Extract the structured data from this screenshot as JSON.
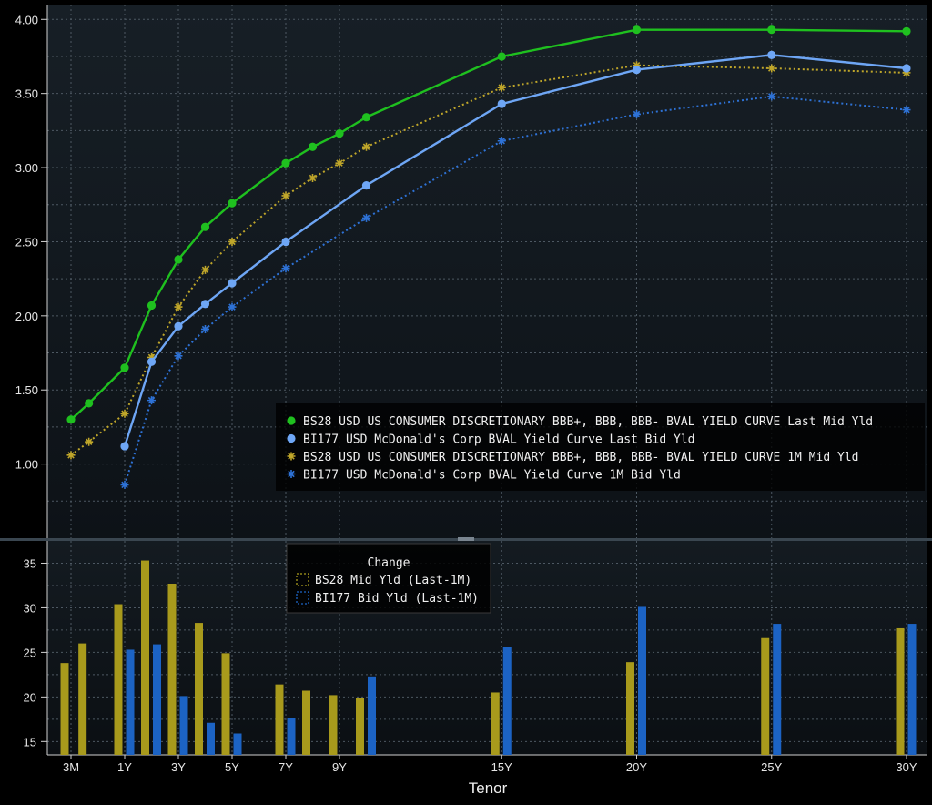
{
  "chart_data": [
    {
      "type": "line",
      "xlabel": "Tenor",
      "ylabel": "",
      "ylim": [
        0.5,
        4.1
      ],
      "y_ticks": [
        "1.00",
        "1.50",
        "2.00",
        "2.50",
        "3.00",
        "3.50",
        "4.00"
      ],
      "x": [
        "3M",
        "6M",
        "1Y",
        "2Y",
        "3Y",
        "4Y",
        "5Y",
        "7Y",
        "8Y",
        "9Y",
        "10Y",
        "15Y",
        "20Y",
        "25Y",
        "30Y"
      ],
      "x_tick_labels": [
        "3M",
        "1Y",
        "3Y",
        "5Y",
        "7Y",
        "9Y",
        "15Y",
        "20Y",
        "25Y",
        "30Y"
      ],
      "grid": true,
      "legend_position": "bottom-right",
      "series": [
        {
          "name": "BS28 USD US CONSUMER DISCRETIONARY BBB+, BBB, BBB- BVAL YIELD CURVE Last Mid Yld",
          "color": "#1fc01f",
          "style": "solid",
          "marker": "dot",
          "values": [
            1.3,
            1.41,
            1.65,
            2.07,
            2.38,
            2.6,
            2.76,
            3.03,
            3.14,
            3.23,
            3.34,
            3.75,
            3.93,
            3.93,
            3.92
          ]
        },
        {
          "name": "BI177 USD McDonald's Corp BVAL Yield Curve Last Bid Yld",
          "color": "#6ea6f5",
          "style": "solid",
          "marker": "dot",
          "values": [
            null,
            null,
            1.12,
            1.69,
            1.93,
            2.08,
            2.22,
            2.5,
            null,
            null,
            2.88,
            3.43,
            3.66,
            3.76,
            3.67
          ]
        },
        {
          "name": "BS28 USD US CONSUMER DISCRETIONARY BBB+, BBB, BBB- BVAL YIELD CURVE 1M Mid Yld",
          "color": "#bfa62a",
          "style": "dotted",
          "marker": "star",
          "values": [
            1.06,
            1.15,
            1.34,
            1.72,
            2.06,
            2.31,
            2.5,
            2.81,
            2.93,
            3.03,
            3.14,
            3.54,
            3.69,
            3.67,
            3.64
          ]
        },
        {
          "name": "BI177 USD McDonald's Corp BVAL Yield Curve 1M Bid Yld",
          "color": "#2e72d6",
          "style": "dotted",
          "marker": "star",
          "values": [
            null,
            null,
            0.86,
            1.43,
            1.73,
            1.91,
            2.06,
            2.32,
            null,
            null,
            2.66,
            3.18,
            3.36,
            3.48,
            3.39
          ]
        }
      ]
    },
    {
      "type": "bar",
      "title": "Change",
      "ylim": [
        13.5,
        37.5
      ],
      "y_ticks": [
        "15",
        "20",
        "25",
        "30",
        "35"
      ],
      "legend_position": "top-left",
      "series": [
        {
          "name": "BS28 Mid Yld (Last-1M)",
          "color": "#a89a1c",
          "x": [
            "3M",
            "6M",
            "1Y",
            "2Y",
            "3Y",
            "4Y",
            "5Y",
            "7Y",
            "8Y",
            "9Y",
            "10Y",
            "15Y",
            "20Y",
            "25Y",
            "30Y"
          ],
          "values": [
            23.8,
            26.0,
            30.4,
            35.3,
            32.7,
            28.3,
            24.9,
            21.4,
            20.7,
            20.2,
            19.9,
            20.5,
            23.9,
            26.6,
            27.7
          ]
        },
        {
          "name": "BI177 Bid Yld (Last-1M)",
          "color": "#1c63c4",
          "x": [
            "1Y",
            "2Y",
            "3Y",
            "4Y",
            "5Y",
            "7Y",
            "10Y",
            "15Y",
            "20Y",
            "25Y",
            "30Y"
          ],
          "values": [
            25.3,
            25.9,
            20.1,
            17.1,
            15.9,
            17.6,
            22.3,
            25.6,
            30.1,
            28.2,
            28.2
          ]
        }
      ]
    }
  ]
}
